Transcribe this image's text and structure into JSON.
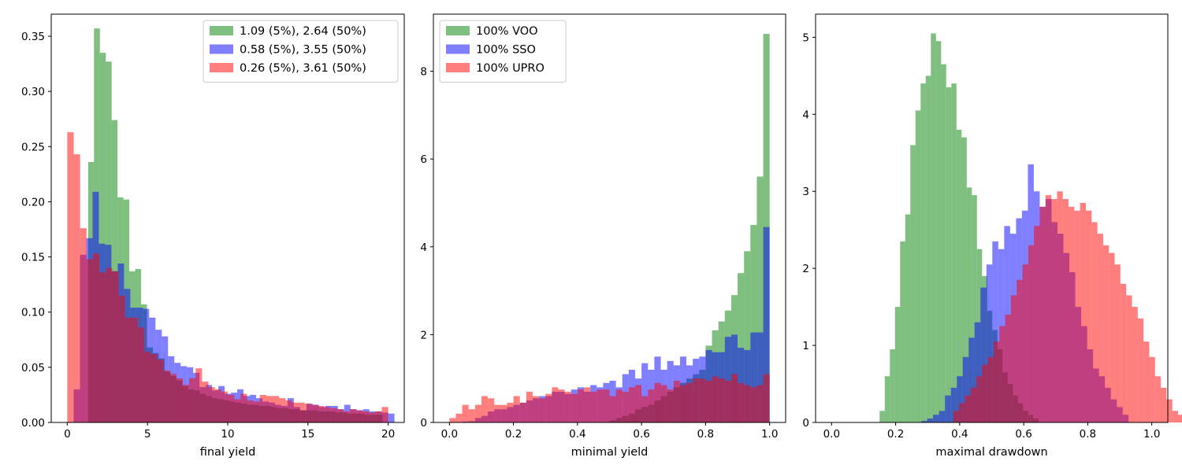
{
  "colors": {
    "green": "#008000",
    "blue": "#0000ff",
    "red": "#ff0000",
    "bar_opacity": 0.5
  },
  "chart_data": [
    {
      "type": "bar",
      "subtype": "histogram",
      "xlabel": "final yield",
      "ylabel": "",
      "xlim": [
        -1,
        21
      ],
      "ylim": [
        0,
        0.37
      ],
      "xticks": [
        0,
        5,
        10,
        15,
        20
      ],
      "xtick_labels": [
        "0",
        "5",
        "10",
        "15",
        "20"
      ],
      "yticks": [
        0,
        0.05,
        0.1,
        0.15,
        0.2,
        0.25,
        0.3,
        0.35
      ],
      "ytick_labels": [
        "0.00",
        "0.05",
        "0.10",
        "0.15",
        "0.20",
        "0.25",
        "0.30",
        "0.35"
      ],
      "legend_position": "upper-right",
      "series": [
        {
          "name": "1.09 (5%), 2.64 (50%)",
          "color_key": "green",
          "x_start": 1.3,
          "bin_width": 0.3667,
          "values": [
            0.236,
            0.357,
            0.335,
            0.327,
            0.274,
            0.204,
            0.202,
            0.137,
            0.139,
            0.107,
            0.068,
            0.063,
            0.058,
            0.046,
            0.042,
            0.038,
            0.033,
            0.03,
            0.029,
            0.026,
            0.024,
            0.022,
            0.021,
            0.02,
            0.019,
            0.018,
            0.017,
            0.016,
            0.016,
            0.015,
            0.015,
            0.014,
            0.013,
            0.013,
            0.012,
            0.012,
            0.011,
            0.011,
            0.011,
            0.01,
            0.01,
            0.01,
            0.009,
            0.009,
            0.008,
            0.008,
            0.008,
            0.007,
            0.007,
            0.007
          ]
        },
        {
          "name": "0.58 (5%), 3.55 (50%)",
          "color_key": "blue",
          "x_start": 0.4,
          "bin_width": 0.392,
          "values": [
            0.03,
            0.152,
            0.167,
            0.209,
            0.162,
            0.161,
            0.137,
            0.144,
            0.121,
            0.104,
            0.104,
            0.103,
            0.095,
            0.084,
            0.078,
            0.06,
            0.054,
            0.051,
            0.05,
            0.045,
            0.032,
            0.034,
            0.029,
            0.033,
            0.026,
            0.027,
            0.03,
            0.024,
            0.025,
            0.022,
            0.019,
            0.018,
            0.016,
            0.015,
            0.022,
            0.014,
            0.011,
            0.017,
            0.016,
            0.014,
            0.015,
            0.015,
            0.012,
            0.016,
            0.012,
            0.011,
            0.012,
            0.01,
            0.01,
            0.009,
            0.008
          ]
        },
        {
          "name": "0.26 (5%), 3.61 (50%)",
          "color_key": "red",
          "x_start": 0.0,
          "bin_width": 0.4,
          "values": [
            0.263,
            0.243,
            0.176,
            0.148,
            0.153,
            0.136,
            0.14,
            0.137,
            0.115,
            0.095,
            0.095,
            0.086,
            0.064,
            0.062,
            0.057,
            0.047,
            0.044,
            0.04,
            0.034,
            0.04,
            0.049,
            0.037,
            0.032,
            0.03,
            0.028,
            0.025,
            0.021,
            0.026,
            0.02,
            0.019,
            0.025,
            0.024,
            0.024,
            0.022,
            0.02,
            0.018,
            0.018,
            0.017,
            0.016,
            0.015,
            0.014,
            0.013,
            0.012,
            0.01,
            0.012,
            0.011,
            0.01,
            0.009,
            0.01,
            0.014
          ]
        }
      ]
    },
    {
      "type": "bar",
      "subtype": "histogram",
      "xlabel": "minimal yield",
      "ylabel": "",
      "xlim": [
        -0.05,
        1.05
      ],
      "ylim": [
        0,
        9.3
      ],
      "xticks": [
        0,
        0.2,
        0.4,
        0.6,
        0.8,
        1.0
      ],
      "xtick_labels": [
        "0.0",
        "0.2",
        "0.4",
        "0.6",
        "0.8",
        "1.0"
      ],
      "yticks": [
        0,
        2,
        4,
        6,
        8
      ],
      "ytick_labels": [
        "0",
        "2",
        "4",
        "6",
        "8"
      ],
      "legend_position": "upper-left",
      "series": [
        {
          "name": "100% VOO",
          "color_key": "green",
          "x_start": 0.0,
          "bin_width": 0.02,
          "values": [
            0,
            0,
            0,
            0,
            0,
            0,
            0,
            0,
            0,
            0,
            0,
            0,
            0,
            0,
            0,
            0,
            0,
            0,
            0,
            0,
            0,
            0,
            0,
            0,
            0,
            0.05,
            0.1,
            0.15,
            0.2,
            0.3,
            0.35,
            0.4,
            0.5,
            0.6,
            0.7,
            0.8,
            0.9,
            1.0,
            1.1,
            1.2,
            1.75,
            2.1,
            2.3,
            2.55,
            2.9,
            3.4,
            3.9,
            4.5,
            5.6,
            8.85
          ]
        },
        {
          "name": "100% SSO",
          "color_key": "blue",
          "x_start": 0.0,
          "bin_width": 0.02,
          "values": [
            0,
            0,
            0.02,
            0.03,
            0.1,
            0.15,
            0.25,
            0.3,
            0.3,
            0.35,
            0.4,
            0.45,
            0.5,
            0.55,
            0.6,
            0.6,
            0.7,
            0.7,
            0.65,
            0.75,
            0.8,
            0.7,
            0.85,
            0.8,
            0.9,
            0.95,
            0.8,
            1.1,
            1.2,
            1.0,
            1.35,
            1.2,
            1.5,
            1.2,
            1.4,
            1.3,
            1.5,
            1.3,
            1.45,
            1.5,
            1.65,
            1.6,
            1.6,
            1.95,
            2.0,
            1.7,
            1.65,
            2.05,
            2.05,
            4.45
          ]
        },
        {
          "name": "100% UPRO",
          "color_key": "red",
          "x_start": 0.0,
          "bin_width": 0.02,
          "values": [
            0.1,
            0.2,
            0.4,
            0.3,
            0.4,
            0.6,
            0.55,
            0.4,
            0.4,
            0.45,
            0.6,
            0.45,
            0.7,
            0.6,
            0.55,
            0.65,
            0.8,
            0.75,
            0.7,
            0.65,
            0.75,
            0.8,
            0.7,
            0.75,
            0.75,
            0.6,
            0.75,
            0.7,
            0.8,
            0.85,
            0.6,
            0.75,
            0.9,
            0.85,
            0.75,
            0.95,
            0.85,
            0.9,
            1.0,
            1.0,
            0.95,
            1.05,
            1.0,
            0.95,
            1.1,
            0.9,
            0.85,
            0.8,
            0.85,
            1.1
          ]
        }
      ]
    },
    {
      "type": "bar",
      "subtype": "histogram",
      "xlabel": "maximal drawdown",
      "ylabel": "",
      "xlim": [
        -0.05,
        1.05
      ],
      "ylim": [
        0,
        5.3
      ],
      "xticks": [
        0,
        0.2,
        0.4,
        0.6,
        0.8,
        1.0
      ],
      "xtick_labels": [
        "0.0",
        "0.2",
        "0.4",
        "0.6",
        "0.8",
        "1.0"
      ],
      "yticks": [
        0,
        1,
        2,
        3,
        4,
        5
      ],
      "ytick_labels": [
        "0",
        "1",
        "2",
        "3",
        "4",
        "5"
      ],
      "legend_position": "none",
      "series": [
        {
          "name": "green",
          "color_key": "green",
          "x_start": 0.15,
          "bin_width": 0.016,
          "values": [
            0.15,
            0.6,
            0.95,
            1.5,
            2.35,
            2.7,
            3.6,
            4.05,
            4.4,
            4.5,
            5.05,
            4.95,
            4.65,
            4.35,
            4.4,
            3.8,
            3.7,
            3.05,
            2.95,
            2.25,
            1.9,
            1.45,
            1.2,
            0.95,
            0.65,
            0.5,
            0.35,
            0.25,
            0.15,
            0.1,
            0.05
          ]
        },
        {
          "name": "blue",
          "color_key": "blue",
          "x_start": 0.28,
          "bin_width": 0.0185,
          "values": [
            0.02,
            0.05,
            0.1,
            0.15,
            0.35,
            0.45,
            0.6,
            0.85,
            1.1,
            1.3,
            1.75,
            2.05,
            2.35,
            2.25,
            2.55,
            2.45,
            2.65,
            2.75,
            3.35,
            3.0,
            2.8,
            2.9,
            2.6,
            2.45,
            2.2,
            1.95,
            1.5,
            1.25,
            0.95,
            0.7,
            0.6,
            0.45,
            0.3,
            0.2,
            0.1
          ]
        },
        {
          "name": "red",
          "color_key": "red",
          "x_start": 0.38,
          "bin_width": 0.018,
          "values": [
            0.15,
            0.25,
            0.35,
            0.45,
            0.6,
            0.75,
            0.85,
            1.05,
            1.25,
            1.4,
            1.65,
            1.85,
            2.05,
            2.3,
            2.55,
            2.8,
            2.95,
            2.9,
            3.0,
            2.9,
            2.8,
            2.75,
            2.85,
            2.75,
            2.6,
            2.45,
            2.3,
            2.2,
            2.05,
            1.8,
            1.65,
            1.5,
            1.35,
            1.05,
            0.85,
            0.6,
            0.45,
            0.3,
            0.15,
            0.1,
            0.05
          ]
        }
      ]
    }
  ]
}
